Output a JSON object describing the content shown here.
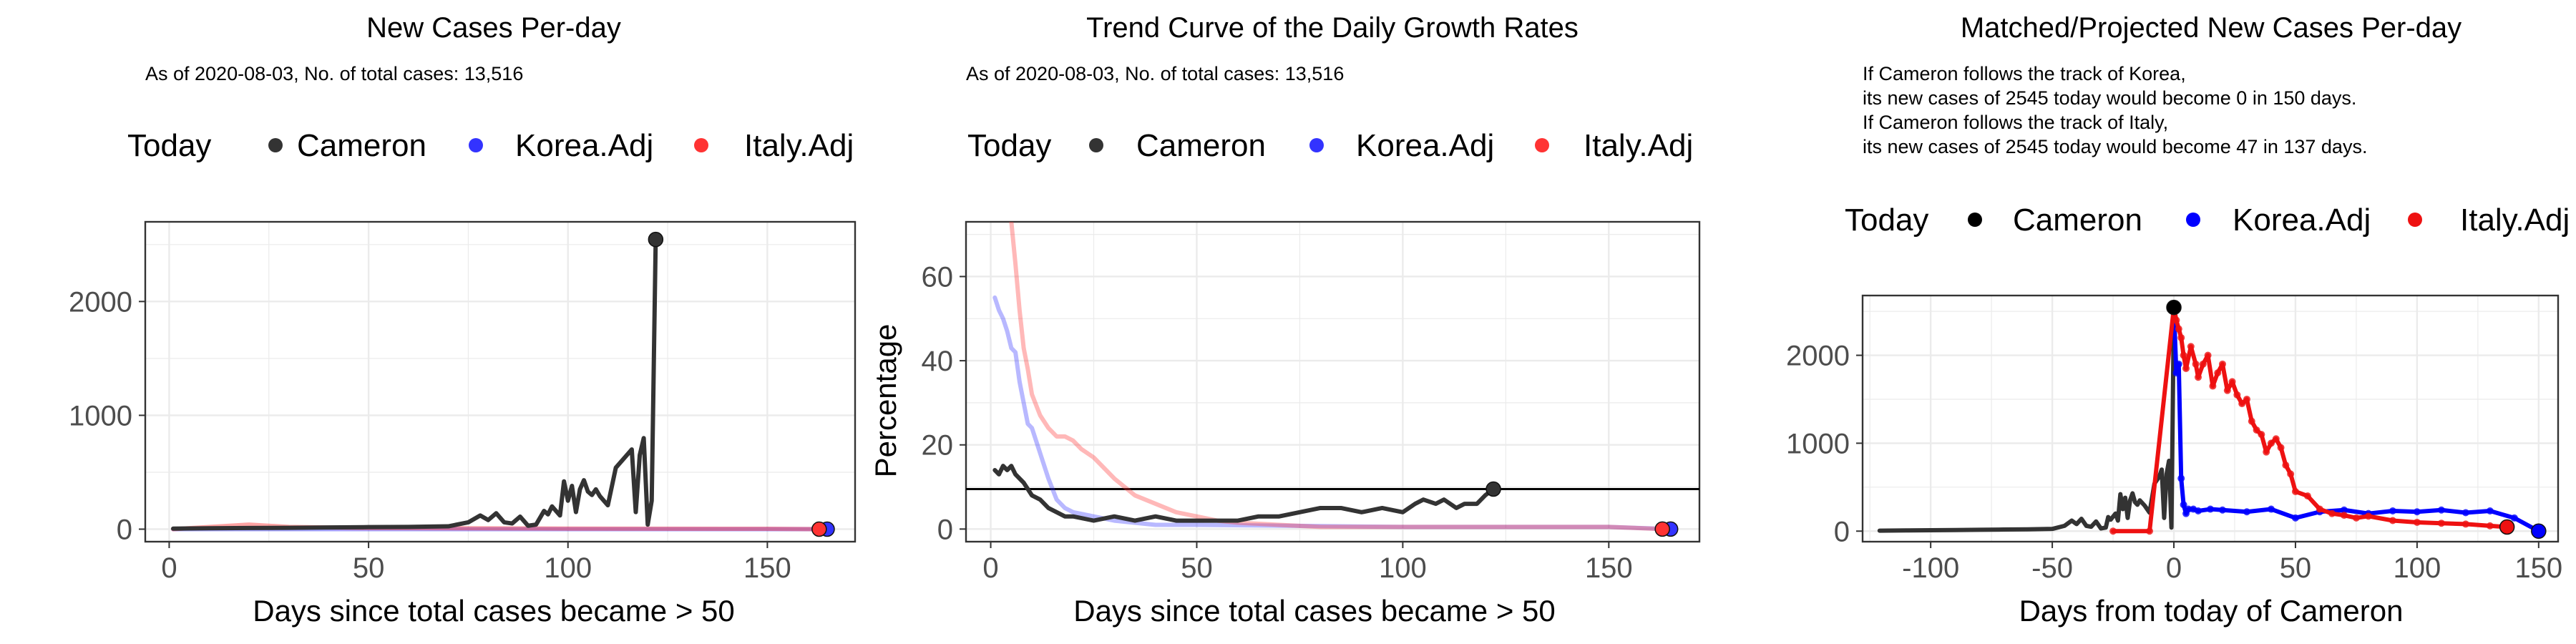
{
  "chart_data": [
    {
      "type": "line",
      "title": "New Cases Per-day",
      "subtitle": "As of 2020-08-03, No. of total cases: 13,516",
      "xlabel": "Days since total cases became > 50",
      "ylabel": "",
      "xlim": [
        -6,
        172
      ],
      "ylim": [
        -110,
        2700
      ],
      "x_ticks": [
        0,
        50,
        100,
        150
      ],
      "y_ticks": [
        0,
        1000,
        2000
      ],
      "legend": {
        "title": "Today",
        "position": "top",
        "entries": [
          "Cameron",
          "Korea.Adj",
          "Italy.Adj"
        ]
      },
      "grid": true,
      "colors": {
        "Cameron": "#333333",
        "Korea.Adj": "#3333ff",
        "Italy.Adj": "#ff3333"
      },
      "series": [
        {
          "name": "Cameron",
          "x": [
            1,
            10,
            20,
            30,
            40,
            50,
            60,
            70,
            75,
            78,
            80,
            82,
            84,
            86,
            88,
            90,
            92,
            94,
            95,
            96,
            98,
            99,
            100,
            101,
            102,
            103,
            104,
            105,
            106,
            107,
            108,
            110,
            112,
            114,
            116,
            117,
            118,
            119,
            120,
            121,
            122
          ],
          "y": [
            5,
            8,
            10,
            12,
            15,
            18,
            20,
            25,
            60,
            120,
            80,
            140,
            60,
            50,
            110,
            30,
            40,
            160,
            130,
            200,
            120,
            420,
            250,
            380,
            150,
            350,
            430,
            330,
            300,
            350,
            290,
            210,
            540,
            620,
            700,
            150,
            650,
            800,
            40,
            250,
            2545
          ]
        },
        {
          "name": "Korea.Adj",
          "x": [
            1,
            50,
            100,
            150,
            165
          ],
          "y": [
            0,
            0,
            0,
            0,
            0
          ]
        },
        {
          "name": "Italy.Adj",
          "x": [
            1,
            20,
            30,
            50,
            100,
            150,
            163
          ],
          "y": [
            0,
            40,
            20,
            10,
            5,
            3,
            0
          ]
        }
      ],
      "today_points": {
        "Cameron": [
          122,
          2545
        ],
        "Korea.Adj": [
          165,
          0
        ],
        "Italy.Adj": [
          163,
          0
        ]
      }
    },
    {
      "type": "line",
      "title": "Trend Curve of the Daily Growth Rates",
      "subtitle": "As of 2020-08-03, No. of total cases: 13,516",
      "xlabel": "Days since total cases became > 50",
      "ylabel": "Percentage",
      "xlim": [
        -6,
        172
      ],
      "ylim": [
        -3,
        73
      ],
      "x_ticks": [
        0,
        50,
        100,
        150
      ],
      "y_ticks": [
        0,
        20,
        40,
        60
      ],
      "hline": 9.5,
      "legend": {
        "title": "Today",
        "position": "top",
        "entries": [
          "Cameron",
          "Korea.Adj",
          "Italy.Adj"
        ]
      },
      "grid": true,
      "colors": {
        "Cameron": "#333333",
        "Korea.Adj": "#3333ff",
        "Italy.Adj": "#ff3333"
      },
      "series": [
        {
          "name": "Cameron",
          "x": [
            1,
            2,
            3,
            4,
            5,
            6,
            7,
            8,
            10,
            12,
            14,
            16,
            18,
            20,
            25,
            30,
            35,
            40,
            45,
            50,
            55,
            60,
            65,
            70,
            75,
            80,
            85,
            90,
            95,
            100,
            103,
            105,
            108,
            110,
            113,
            115,
            118,
            120,
            122
          ],
          "y": [
            14,
            13,
            15,
            14,
            15,
            13,
            12,
            11,
            8,
            7,
            5,
            4,
            3,
            3,
            2,
            3,
            2,
            3,
            2,
            2,
            2,
            2,
            3,
            3,
            4,
            5,
            5,
            4,
            5,
            4,
            6,
            7,
            6,
            7,
            5,
            6,
            6,
            8,
            9.5
          ]
        },
        {
          "name": "Korea.Adj",
          "x": [
            1,
            2,
            3,
            4,
            5,
            6,
            7,
            8,
            9,
            10,
            12,
            14,
            16,
            18,
            20,
            25,
            30,
            40,
            50,
            100,
            150,
            165
          ],
          "y": [
            55,
            52,
            50,
            47,
            43,
            42,
            35,
            30,
            25,
            24,
            18,
            12,
            7,
            5,
            4,
            3,
            2,
            1,
            1,
            0.5,
            0.5,
            0
          ]
        },
        {
          "name": "Italy.Adj",
          "x": [
            5,
            6,
            7,
            8,
            9,
            10,
            12,
            14,
            16,
            18,
            20,
            22,
            25,
            27,
            30,
            35,
            40,
            45,
            50,
            55,
            60,
            70,
            80,
            100,
            150,
            163
          ],
          "y": [
            73,
            63,
            52,
            43,
            38,
            32,
            27,
            24,
            22,
            22,
            21,
            19,
            17,
            15,
            12,
            8,
            6,
            4,
            3,
            2,
            1.5,
            1,
            0.5,
            0.5,
            0.5,
            0
          ]
        }
      ],
      "today_points": {
        "Cameron": [
          122,
          9.5
        ],
        "Korea.Adj": [
          165,
          0
        ],
        "Italy.Adj": [
          163,
          0
        ]
      }
    },
    {
      "type": "line",
      "title": "Matched/Projected New Cases Per-day",
      "annotation_lines": [
        "If Cameron follows the track of Korea,",
        "its new cases of 2545 today would become 0 in 150 days.",
        "If Cameron follows the track of Italy,",
        "its new cases of 2545 today would become 47 in 137 days."
      ],
      "xlabel": "Days from today of Cameron",
      "ylabel": "",
      "xlim": [
        -128,
        158
      ],
      "ylim": [
        -120,
        2680
      ],
      "x_ticks": [
        -100,
        -50,
        0,
        50,
        100,
        150
      ],
      "y_ticks": [
        0,
        1000,
        2000
      ],
      "legend": {
        "title": "Today",
        "position": "top",
        "entries": [
          "Cameron",
          "Korea.Adj",
          "Italy.Adj"
        ]
      },
      "grid": true,
      "colors": {
        "Cameron": "#333333",
        "Korea.Adj": "#0000ff",
        "Italy.Adj": "#ee1111"
      },
      "series": [
        {
          "name": "Cameron",
          "x": [
            -121,
            -110,
            -100,
            -90,
            -80,
            -70,
            -60,
            -50,
            -45,
            -42,
            -40,
            -38,
            -36,
            -34,
            -32,
            -30,
            -28,
            -27,
            -26,
            -24,
            -23,
            -22,
            -21,
            -20,
            -19,
            -18,
            -17,
            -16,
            -15,
            -14,
            -12,
            -10,
            -8,
            -6,
            -5,
            -4,
            -3,
            -2,
            -1,
            0
          ],
          "y": [
            5,
            8,
            10,
            12,
            15,
            18,
            20,
            25,
            60,
            120,
            80,
            140,
            60,
            50,
            110,
            30,
            40,
            160,
            130,
            200,
            120,
            420,
            250,
            380,
            150,
            350,
            430,
            330,
            300,
            350,
            290,
            210,
            540,
            620,
            700,
            150,
            650,
            800,
            40,
            2545
          ]
        },
        {
          "name": "Korea.Adj",
          "x": [
            0,
            1,
            2,
            3,
            4,
            5,
            6,
            8,
            10,
            15,
            20,
            30,
            40,
            50,
            60,
            70,
            80,
            90,
            100,
            110,
            120,
            130,
            140,
            150
          ],
          "y": [
            2545,
            1800,
            1900,
            600,
            300,
            200,
            250,
            250,
            230,
            250,
            240,
            220,
            250,
            150,
            220,
            240,
            200,
            230,
            220,
            240,
            210,
            230,
            150,
            0
          ]
        },
        {
          "name": "Italy.Adj",
          "x": [
            -25,
            -10,
            0,
            1,
            2,
            3,
            4,
            5,
            7,
            9,
            10,
            12,
            14,
            16,
            18,
            20,
            22,
            24,
            26,
            28,
            30,
            32,
            34,
            36,
            38,
            40,
            42,
            44,
            46,
            48,
            50,
            55,
            60,
            65,
            70,
            75,
            80,
            90,
            100,
            110,
            120,
            130,
            137
          ],
          "y": [
            0,
            0,
            2545,
            2400,
            2300,
            2200,
            2000,
            1850,
            2100,
            1900,
            1750,
            1900,
            2000,
            1650,
            1800,
            1900,
            1600,
            1700,
            1550,
            1450,
            1500,
            1250,
            1150,
            1100,
            900,
            1000,
            1050,
            950,
            750,
            650,
            450,
            400,
            250,
            200,
            180,
            150,
            170,
            120,
            100,
            90,
            80,
            60,
            47
          ]
        }
      ],
      "today_points": {
        "Cameron": [
          0,
          2545
        ],
        "Korea.Adj": [
          150,
          0
        ],
        "Italy.Adj": [
          137,
          47
        ]
      }
    }
  ]
}
